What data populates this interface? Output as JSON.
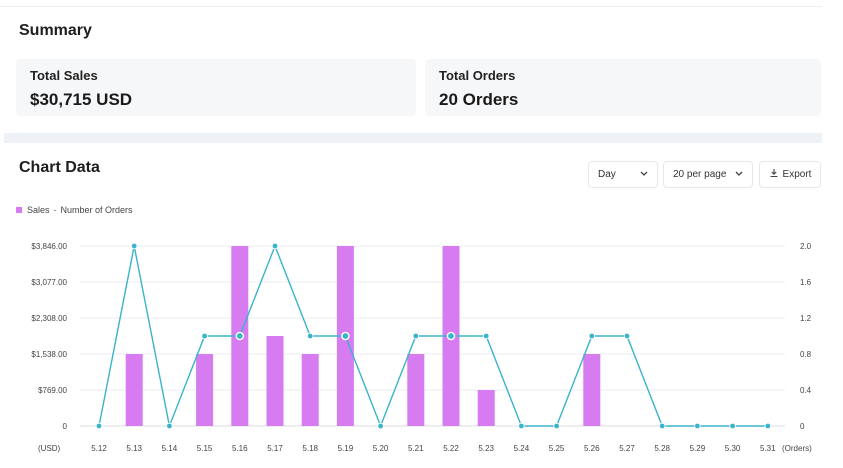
{
  "summary": {
    "title": "Summary",
    "cards": [
      {
        "label": "Total Sales",
        "value": "$30,715 USD"
      },
      {
        "label": "Total Orders",
        "value": "20 Orders"
      }
    ]
  },
  "chart_section": {
    "title": "Chart Data",
    "controls": {
      "interval": "Day",
      "per_page": "20 per page",
      "export_label": "Export"
    }
  },
  "legend": {
    "sales": "Sales",
    "orders": "Number of Orders"
  },
  "colors": {
    "bar": "#d67cf0",
    "line": "#3ab3cc"
  },
  "chart_data": {
    "type": "bar",
    "categories": [
      "5.12",
      "5.13",
      "5.14",
      "5.15",
      "5.16",
      "5.17",
      "5.18",
      "5.19",
      "5.20",
      "5.21",
      "5.22",
      "5.23",
      "5.24",
      "5.25",
      "5.26",
      "5.27",
      "5.28",
      "5.29",
      "5.30",
      "5.31"
    ],
    "series": [
      {
        "name": "Sales",
        "type": "bar",
        "axis": "left",
        "values": [
          0,
          1538,
          0,
          1538,
          3846,
          1923,
          1538,
          3846,
          0,
          1538,
          3846,
          769,
          0,
          0,
          1538,
          0,
          0,
          0,
          0,
          0
        ]
      },
      {
        "name": "Number of Orders",
        "type": "line",
        "axis": "right",
        "values": [
          0,
          2,
          0,
          1,
          1,
          2,
          1,
          1,
          0,
          1,
          1,
          1,
          0,
          0,
          1,
          1,
          0,
          0,
          0,
          0
        ]
      }
    ],
    "y_left": {
      "ticks": [
        "$3,846.00",
        "$3,077.00",
        "$2,308.00",
        "$1,538.00",
        "$769.00",
        "0"
      ],
      "max": 3846,
      "unit_label": "(USD)"
    },
    "y_right": {
      "ticks": [
        "2.0",
        "1.6",
        "1.2",
        "0.8",
        "0.4",
        "0"
      ],
      "max": 2.0,
      "unit_label": "(Orders)"
    },
    "grid": true,
    "legend_position": "top-left"
  }
}
